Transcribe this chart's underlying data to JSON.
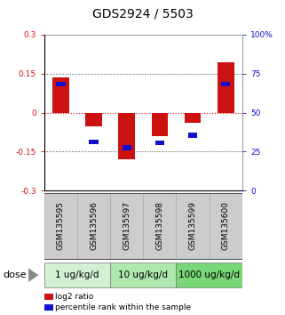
{
  "title": "GDS2924 / 5503",
  "samples": [
    "GSM135595",
    "GSM135596",
    "GSM135597",
    "GSM135598",
    "GSM135599",
    "GSM135600"
  ],
  "log2_ratio": [
    0.135,
    -0.052,
    -0.178,
    -0.092,
    -0.038,
    0.195
  ],
  "percentile_rank": [
    0.685,
    0.31,
    0.275,
    0.305,
    0.355,
    0.685
  ],
  "dose_groups": [
    {
      "label": "1 ug/kg/d",
      "samples": [
        0,
        1
      ],
      "color": "#d4f0d4"
    },
    {
      "label": "10 ug/kg/d",
      "samples": [
        2,
        3
      ],
      "color": "#aee8ae"
    },
    {
      "label": "1000 ug/kg/d",
      "samples": [
        4,
        5
      ],
      "color": "#78d878"
    }
  ],
  "ylim": [
    -0.3,
    0.3
  ],
  "yticks_left": [
    -0.3,
    -0.15,
    0,
    0.15,
    0.3
  ],
  "yticks_right": [
    0,
    25,
    50,
    75,
    100
  ],
  "bar_color": "#cc1111",
  "square_color": "#1111cc",
  "bg_color": "#ffffff",
  "sample_bg_color": "#cccccc",
  "hline0_color": "#cc1111",
  "dotted_color": "#444444",
  "title_fontsize": 10,
  "tick_fontsize": 6.5,
  "label_fontsize": 8,
  "dose_fontsize": 7.5,
  "legend_fontsize": 6.5
}
